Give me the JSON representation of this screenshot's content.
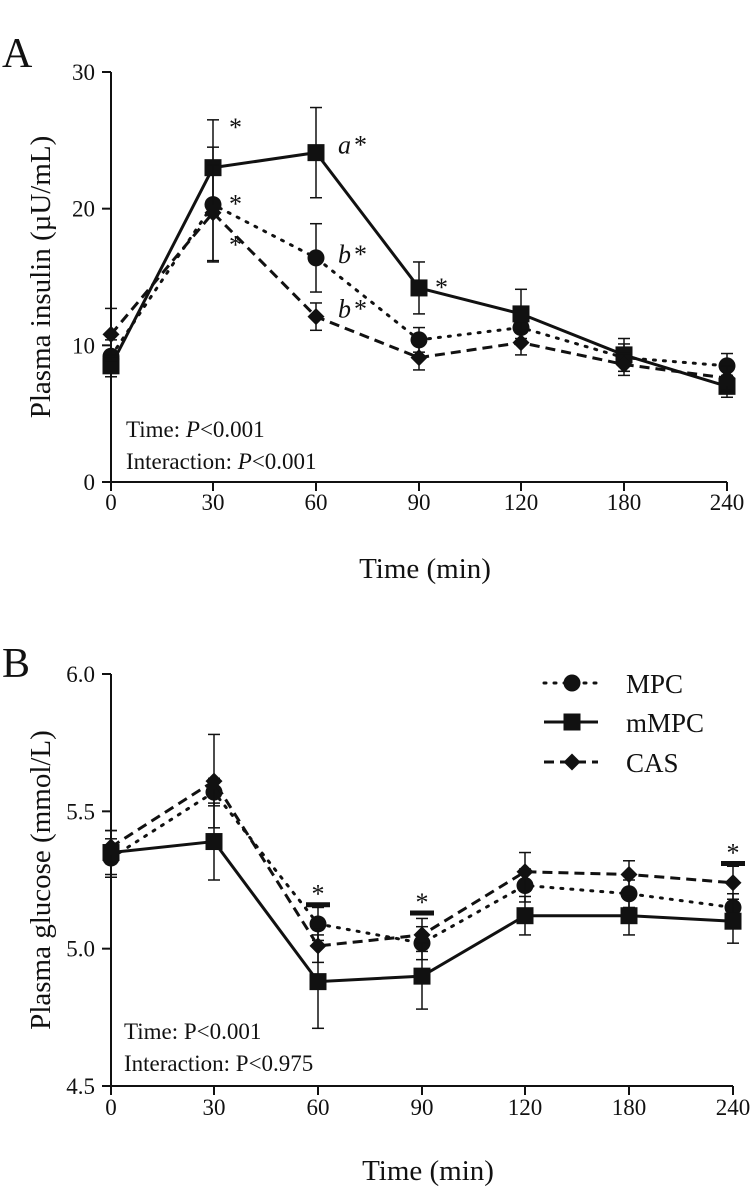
{
  "chart_data": [
    {
      "panel_label": "A",
      "type": "line",
      "ylabel": "Plasma insulin (µU/mL)",
      "xlabel": "Time (min)",
      "categories": [
        "0",
        "30",
        "60",
        "90",
        "120",
        "180",
        "240"
      ],
      "ylim": [
        0,
        30
      ],
      "yticks": [
        "0",
        "10",
        "20",
        "30"
      ],
      "series": [
        {
          "name": "MPC",
          "marker": "circle",
          "dash": "dotted",
          "values": [
            9.2,
            20.3,
            16.4,
            10.4,
            11.3,
            9.1,
            8.5
          ],
          "errors": [
            1.2,
            4.2,
            2.5,
            0.9,
            1.2,
            1.0,
            0.9
          ]
        },
        {
          "name": "mMPC",
          "marker": "square",
          "dash": "solid",
          "values": [
            8.5,
            23.0,
            24.1,
            14.2,
            12.3,
            9.3,
            7.0
          ],
          "errors": [
            0.8,
            3.5,
            3.3,
            1.9,
            1.8,
            1.2,
            0.8
          ]
        },
        {
          "name": "CAS",
          "marker": "diamond",
          "dash": "dashed",
          "values": [
            10.8,
            19.7,
            12.1,
            9.1,
            10.2,
            8.6,
            7.6
          ],
          "errors": [
            1.9,
            3.5,
            1.0,
            0.9,
            0.9,
            0.8,
            0.9
          ]
        }
      ],
      "annotations": [
        {
          "cat": "30",
          "y": 26.2,
          "text": "*",
          "dx": 16
        },
        {
          "cat": "30",
          "y": 20.6,
          "text": "*",
          "dx": 16
        },
        {
          "cat": "30",
          "y": 17.6,
          "text": "*",
          "dx": 16
        },
        {
          "cat": "60",
          "y": 24.9,
          "text": "a",
          "italic": true,
          "dx": 22
        },
        {
          "cat": "60",
          "y": 24.9,
          "text": "*",
          "dx": 38
        },
        {
          "cat": "60",
          "y": 16.9,
          "text": "b",
          "italic": true,
          "dx": 22
        },
        {
          "cat": "60",
          "y": 16.9,
          "text": "*",
          "dx": 38
        },
        {
          "cat": "60",
          "y": 12.9,
          "text": "b",
          "italic": true,
          "dx": 22
        },
        {
          "cat": "60",
          "y": 12.9,
          "text": "*",
          "dx": 38
        },
        {
          "cat": "90",
          "y": 14.5,
          "text": "*",
          "dx": 16
        }
      ],
      "stats": [
        {
          "label": "Time: ",
          "p": "P",
          "rest": "<0.001",
          "italic_p": true
        },
        {
          "label": "Interaction: ",
          "p": "P",
          "rest": "<0.001",
          "italic_p": true
        }
      ]
    },
    {
      "panel_label": "B",
      "type": "line",
      "ylabel": "Plasma glucose (mmol/L)",
      "xlabel": "Time (min)",
      "categories": [
        "0",
        "30",
        "60",
        "90",
        "120",
        "180",
        "240"
      ],
      "ylim": [
        4.5,
        6.0
      ],
      "yticks": [
        "4.5",
        "5.0",
        "5.5",
        "6.0"
      ],
      "series": [
        {
          "name": "MPC",
          "marker": "circle",
          "dash": "dotted",
          "values": [
            5.33,
            5.57,
            5.09,
            5.02,
            5.23,
            5.2,
            5.15
          ],
          "errors": [
            0.07,
            0.05,
            0.06,
            0.06,
            0.06,
            0.05,
            0.05
          ]
        },
        {
          "name": "mMPC",
          "marker": "square",
          "dash": "solid",
          "values": [
            5.35,
            5.39,
            4.88,
            4.9,
            5.12,
            5.12,
            5.1
          ],
          "errors": [
            0.08,
            0.14,
            0.17,
            0.12,
            0.07,
            0.07,
            0.08
          ]
        },
        {
          "name": "CAS",
          "marker": "diamond",
          "dash": "dashed",
          "values": [
            5.37,
            5.61,
            5.01,
            5.05,
            5.28,
            5.27,
            5.24
          ],
          "errors": [
            0.06,
            0.17,
            0.06,
            0.06,
            0.07,
            0.05,
            0.06
          ]
        }
      ],
      "sig_markers": [
        {
          "cat": "60",
          "y": 5.16,
          "text": "*"
        },
        {
          "cat": "90",
          "y": 5.13,
          "text": "*"
        },
        {
          "cat": "240",
          "y": 5.31,
          "text": "*"
        }
      ],
      "stats": [
        {
          "label": "Time: ",
          "p": "P",
          "rest": "<0.001",
          "italic_p": false
        },
        {
          "label": "Interaction: ",
          "p": "P",
          "rest": "<0.975",
          "italic_p": false
        }
      ],
      "legend": {
        "position": "top-right",
        "entries": [
          "MPC",
          "mMPC",
          "CAS"
        ]
      }
    }
  ]
}
